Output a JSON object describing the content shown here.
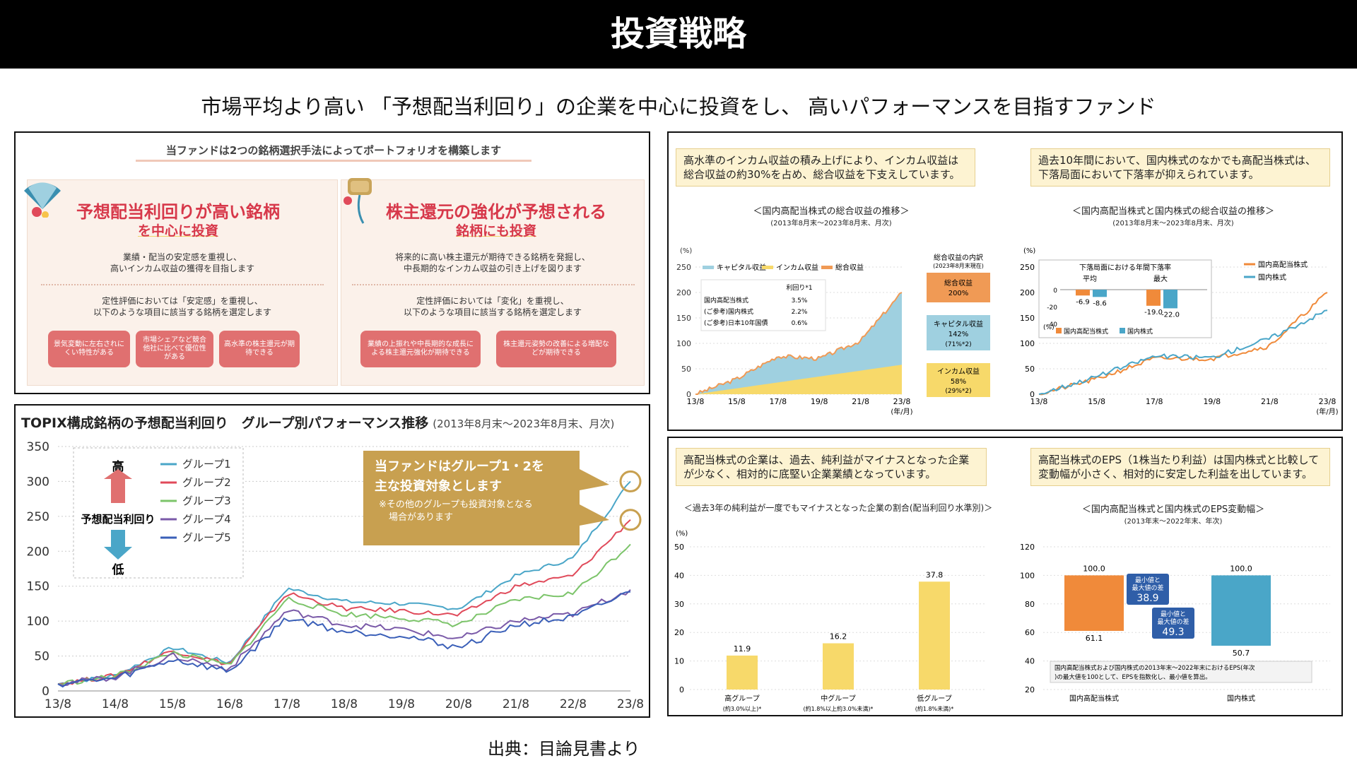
{
  "header": {
    "title": "投資戦略"
  },
  "subtitle": "市場平均より高い 「予想配当利回り」の企業を中心に投資をし、 高いパフォーマンスを目指すファンド",
  "source": "出典：目論見書より",
  "method": {
    "banner": "当ファンドは2つの銘柄選択手法によってポートフォリオを構築します",
    "left": {
      "title1": "予想配当利回りが高い銘柄",
      "title2": "を中心に投資",
      "desc1": "業績・配当の安定感を重視し、",
      "desc2": "高いインカム収益の獲得を目指します",
      "eval1": "定性評価においては「安定感」を重視し、",
      "eval2": "以下のような項目に該当する銘柄を選定します",
      "pills": [
        "景気変動に左右されにくい特性がある",
        "市場シェアなど競合他社に比べて優位性がある",
        "高水準の株主還元が期待できる"
      ]
    },
    "right": {
      "title1": "株主還元の強化が予想される",
      "title2": "銘柄にも投資",
      "desc1": "将来的に高い株主還元が期待できる銘柄を発掘し、",
      "desc2": "中長期的なインカム収益の引き上げを図ります",
      "eval1": "定性評価においては「変化」を重視し、",
      "eval2": "以下のような項目に該当する銘柄を選定します",
      "pills": [
        "業績の上振れや中長期的な成長による株主還元強化が期待できる",
        "株主還元姿勢の改善による増配などが期待できる"
      ]
    }
  },
  "chart_data": [
    {
      "type": "line",
      "title": "TOPIX構成銘柄の予想配当利回り　グループ別パフォーマンス推移",
      "subtitle": "(2013年8月末〜2023年8月末、月次)",
      "categories": [
        "13/8",
        "14/8",
        "15/8",
        "16/8",
        "17/8",
        "18/8",
        "19/8",
        "20/8",
        "21/8",
        "22/8",
        "23/8"
      ],
      "yticks": [
        0,
        50,
        100,
        150,
        200,
        250,
        300,
        350
      ],
      "ylim": [
        0,
        350
      ],
      "series": [
        {
          "name": "グループ1",
          "color": "#4aa6c8",
          "values": [
            10,
            22,
            62,
            40,
            147,
            128,
            125,
            118,
            165,
            190,
            300
          ]
        },
        {
          "name": "グループ2",
          "color": "#e04a5a",
          "values": [
            10,
            22,
            58,
            38,
            140,
            118,
            115,
            108,
            150,
            165,
            245
          ]
        },
        {
          "name": "グループ3",
          "color": "#7cc46a",
          "values": [
            10,
            21,
            55,
            36,
            132,
            110,
            105,
            95,
            130,
            140,
            210
          ]
        },
        {
          "name": "グループ4",
          "color": "#7a5aa8",
          "values": [
            10,
            20,
            50,
            32,
            115,
            95,
            88,
            75,
            100,
            110,
            145
          ]
        },
        {
          "name": "グループ5",
          "color": "#3a5fb8",
          "values": [
            10,
            18,
            45,
            28,
            105,
            85,
            80,
            62,
            95,
            105,
            142
          ]
        }
      ],
      "legend": {
        "high": "高",
        "low": "低",
        "axis": "予想配当利回り"
      },
      "callout": {
        "line1": "当ファンドはグループ1・2を",
        "line2": "主な投資対象とします",
        "note1": "※その他のグループも投資対象となる",
        "note2": "場合があります"
      }
    },
    {
      "type": "area",
      "title": "＜国内高配当株式の総合収益の推移＞",
      "subtitle": "(2013年8月末〜2023年8月末、月次)",
      "caption": "高水準のインカム収益の積み上げにより、インカム収益は総合収益の約30%を占め、総合収益を下支えしています。",
      "unit": "(%)",
      "xunit": "(年/月)",
      "categories": [
        "13/8",
        "15/8",
        "17/8",
        "19/8",
        "21/8",
        "23/8"
      ],
      "yticks": [
        0,
        50,
        100,
        150,
        200,
        250
      ],
      "ylim": [
        0,
        250
      ],
      "series": [
        {
          "name": "キャピタル収益",
          "color": "#9fd0e0"
        },
        {
          "name": "インカム収益",
          "color": "#f7d96a"
        },
        {
          "name": "総合収益",
          "color": "#f09a55",
          "values": [
            0,
            30,
            75,
            70,
            105,
            200
          ]
        }
      ],
      "breakdown": {
        "title": "総合収益の内訳",
        "note": "(2023年8月末現在)",
        "total": "総合収益",
        "total_v": "200%",
        "cap": "キャピタル収益",
        "cap_v": "142%",
        "cap_r": "(71%*2)",
        "inc": "インカム収益",
        "inc_v": "58%",
        "inc_r": "(29%*2)"
      },
      "table": {
        "head": "利回り*1",
        "rows": [
          [
            "国内高配当株式",
            "3.5%"
          ],
          [
            "(ご参考)国内株式",
            "2.2%"
          ],
          [
            "(ご参考)日本10年国債",
            "0.6%"
          ]
        ]
      }
    },
    {
      "type": "line",
      "title": "＜国内高配当株式と国内株式の総合収益の推移＞",
      "subtitle": "(2013年8月末〜2023年8月末、月次)",
      "caption": "過去10年間において、国内株式のなかでも高配当株式は、下落局面において下落率が抑えられています。",
      "unit": "(%)",
      "xunit": "(年/月)",
      "categories": [
        "13/8",
        "15/8",
        "17/8",
        "19/8",
        "21/8",
        "23/8"
      ],
      "yticks": [
        0,
        50,
        100,
        150,
        200,
        250
      ],
      "ylim": [
        0,
        250
      ],
      "series": [
        {
          "name": "国内高配当株式",
          "color": "#f08a3a",
          "values": [
            0,
            30,
            70,
            70,
            95,
            200
          ]
        },
        {
          "name": "国内株式",
          "color": "#4aa6c8",
          "values": [
            0,
            35,
            75,
            72,
            110,
            165
          ]
        }
      ],
      "inset": {
        "title": "下落局面における年間下落率",
        "avg": "平均",
        "max": "最大",
        "unit": "(%)",
        "values": {
          "avg": [
            -6.9,
            -8.6
          ],
          "max": [
            -19.0,
            -22.0
          ]
        },
        "labels": [
          "-6.9",
          "-8.6",
          "-19.0",
          "-22.0"
        ],
        "ticks": [
          "0",
          "-20",
          "-40"
        ],
        "legend": [
          "国内高配当株式",
          "国内株式"
        ]
      }
    },
    {
      "type": "bar",
      "title": "＜過去3年の純利益が一度でもマイナスとなった企業の割合(配当利回り水準別)＞",
      "caption": "高配当株式の企業は、過去、純利益がマイナスとなった企業が少なく、相対的に底堅い企業業績となっています。",
      "unit": "(%)",
      "categories": [
        "高グループ",
        "中グループ",
        "低グループ"
      ],
      "cat_sub": [
        "(約3.0%以上)*",
        "(約1.8%以上約3.0%未満)*",
        "(約1.8%未満)*"
      ],
      "values": [
        11.9,
        16.2,
        37.8
      ],
      "labels": [
        "11.9",
        "16.2",
        "37.8"
      ],
      "yticks": [
        0,
        10,
        20,
        30,
        40,
        50
      ],
      "ylim": [
        0,
        50
      ]
    },
    {
      "type": "bar",
      "title": "＜国内高配当株式と国内株式のEPS変動幅＞",
      "subtitle": "(2013年末〜2022年末、年次)",
      "caption": "高配当株式のEPS（1株当たり利益）は国内株式と比較して変動幅が小さく、相対的に安定した利益を出しています。",
      "categories": [
        "国内高配当株式",
        "国内株式"
      ],
      "ranges": [
        [
          61.1,
          100.0
        ],
        [
          50.7,
          100.0
        ]
      ],
      "labels_top": [
        "100.0",
        "100.0"
      ],
      "labels_bottom": [
        "61.1",
        "50.7"
      ],
      "diff": [
        {
          "l1": "最小値と",
          "l2": "最大値の差",
          "v": "38.9"
        },
        {
          "l1": "最小値と",
          "l2": "最大値の差",
          "v": "49.3"
        }
      ],
      "yticks": [
        20,
        40,
        60,
        80,
        100,
        120
      ],
      "ylim": [
        20,
        120
      ],
      "note": "国内高配当株式および国内株式の2013年末〜2022年末におけるEPS(年次)の最大値を100として、EPSを指数化し、最小値を算出。"
    }
  ]
}
